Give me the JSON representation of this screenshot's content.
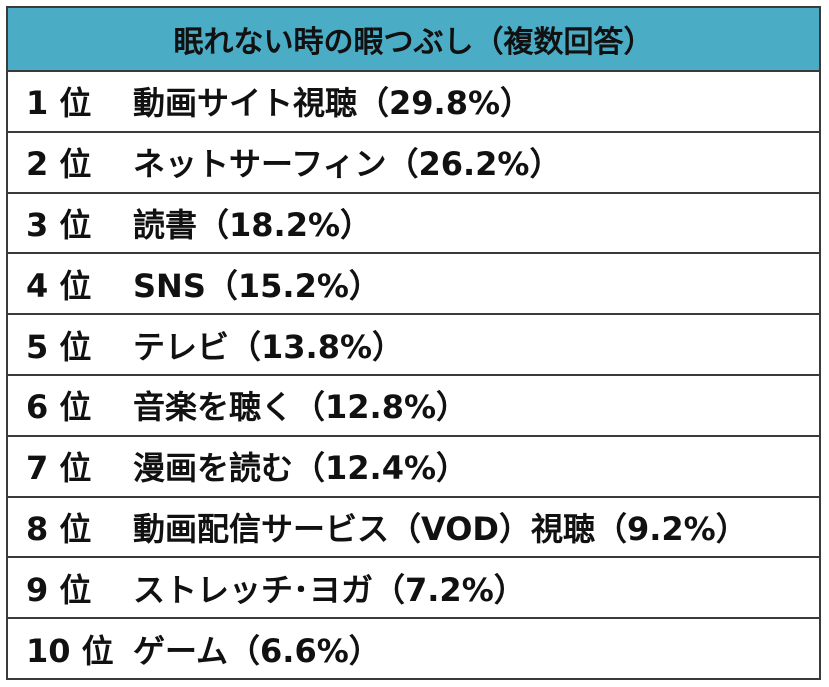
{
  "header": {
    "title": "眠れない時の暇つぶし（複数回答）"
  },
  "rows": [
    {
      "rank": "1 位",
      "item": "動画サイト視聴（29.8%）"
    },
    {
      "rank": "2 位",
      "item": "ネットサーフィン（26.2%）"
    },
    {
      "rank": "3 位",
      "item": "読書（18.2%）"
    },
    {
      "rank": "4 位",
      "item": "SNS（15.2%）"
    },
    {
      "rank": "5 位",
      "item": "テレビ（13.8%）"
    },
    {
      "rank": "6 位",
      "item": "音楽を聴く（12.8%）"
    },
    {
      "rank": "7 位",
      "item": "漫画を読む（12.4%）"
    },
    {
      "rank": "8 位",
      "item": "動画配信サービス（VOD）視聴（9.2%）"
    },
    {
      "rank": "9 位",
      "item": "ストレッチ･ヨガ（7.2%）"
    },
    {
      "rank": "10 位",
      "item": "ゲーム（6.6%）"
    }
  ],
  "colors": {
    "header_background": "#4bacc6",
    "border": "#3a3a3a"
  }
}
